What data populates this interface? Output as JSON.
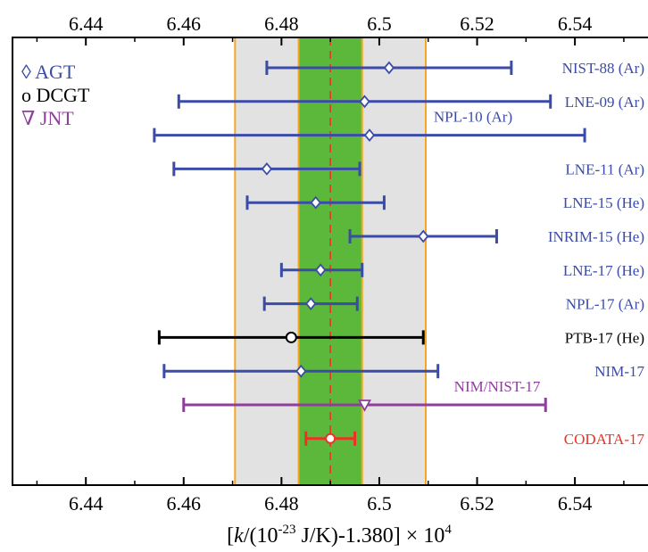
{
  "chart_data": {
    "type": "scatter",
    "title": "",
    "xlabel_parts": {
      "prefix": "[",
      "k": "k",
      "mid": "/(10",
      "exp": "-23",
      "suffix": " J/K)-1.380] × 10",
      "exp2": "4"
    },
    "xlim": [
      6.425,
      6.5575
    ],
    "ticks": [
      6.44,
      6.46,
      6.48,
      6.5,
      6.52,
      6.54
    ],
    "tick_labels": [
      "6.44",
      "6.46",
      "6.48",
      "6.5",
      "6.52",
      "6.54"
    ],
    "bands": {
      "outer": [
        6.4705,
        6.5095
      ],
      "inner": [
        6.4835,
        6.4965
      ],
      "center": 6.49
    },
    "legend": [
      {
        "glyph": "◊",
        "label": "AGT",
        "color": "#3b4ba8"
      },
      {
        "glyph": "o",
        "label": "DCGT",
        "color": "#000000"
      },
      {
        "glyph": "∇",
        "label": "JNT",
        "color": "#8e3f9c"
      }
    ],
    "entries": [
      {
        "name": "NIST-88 (Ar)",
        "value": 6.502,
        "low": 6.477,
        "high": 6.527,
        "color": "#3b4ba8",
        "marker": "diamond"
      },
      {
        "name": "LNE-09 (Ar)",
        "value": 6.497,
        "low": 6.459,
        "high": 6.535,
        "color": "#3b4ba8",
        "marker": "diamond"
      },
      {
        "name": "NPL-10 (Ar)",
        "value": 6.498,
        "low": 6.454,
        "high": 6.542,
        "color": "#3b4ba8",
        "marker": "diamond"
      },
      {
        "name": "LNE-11 (Ar)",
        "value": 6.477,
        "low": 6.458,
        "high": 6.496,
        "color": "#3b4ba8",
        "marker": "diamond"
      },
      {
        "name": "LNE-15 (He)",
        "value": 6.487,
        "low": 6.473,
        "high": 6.501,
        "color": "#3b4ba8",
        "marker": "diamond"
      },
      {
        "name": "INRIM-15 (He)",
        "value": 6.509,
        "low": 6.494,
        "high": 6.524,
        "color": "#3b4ba8",
        "marker": "diamond"
      },
      {
        "name": "LNE-17 (He)",
        "value": 6.488,
        "low": 6.48,
        "high": 6.4965,
        "color": "#3b4ba8",
        "marker": "diamond"
      },
      {
        "name": "NPL-17 (Ar)",
        "value": 6.486,
        "low": 6.4765,
        "high": 6.4955,
        "color": "#3b4ba8",
        "marker": "diamond"
      },
      {
        "name": "PTB-17 (He)",
        "value": 6.482,
        "low": 6.455,
        "high": 6.509,
        "color": "#000000",
        "marker": "circle"
      },
      {
        "name": "NIM-17",
        "value": 6.484,
        "low": 6.456,
        "high": 6.512,
        "color": "#3b4ba8",
        "marker": "diamond"
      },
      {
        "name": "NIM/NIST-17",
        "value": 6.497,
        "low": 6.46,
        "high": 6.534,
        "color": "#8e3f9c",
        "marker": "triangle"
      },
      {
        "name": "CODATA-17",
        "value": 6.49,
        "low": 6.485,
        "high": 6.495,
        "color": "#ee3124",
        "marker": "circle-filled"
      }
    ]
  }
}
